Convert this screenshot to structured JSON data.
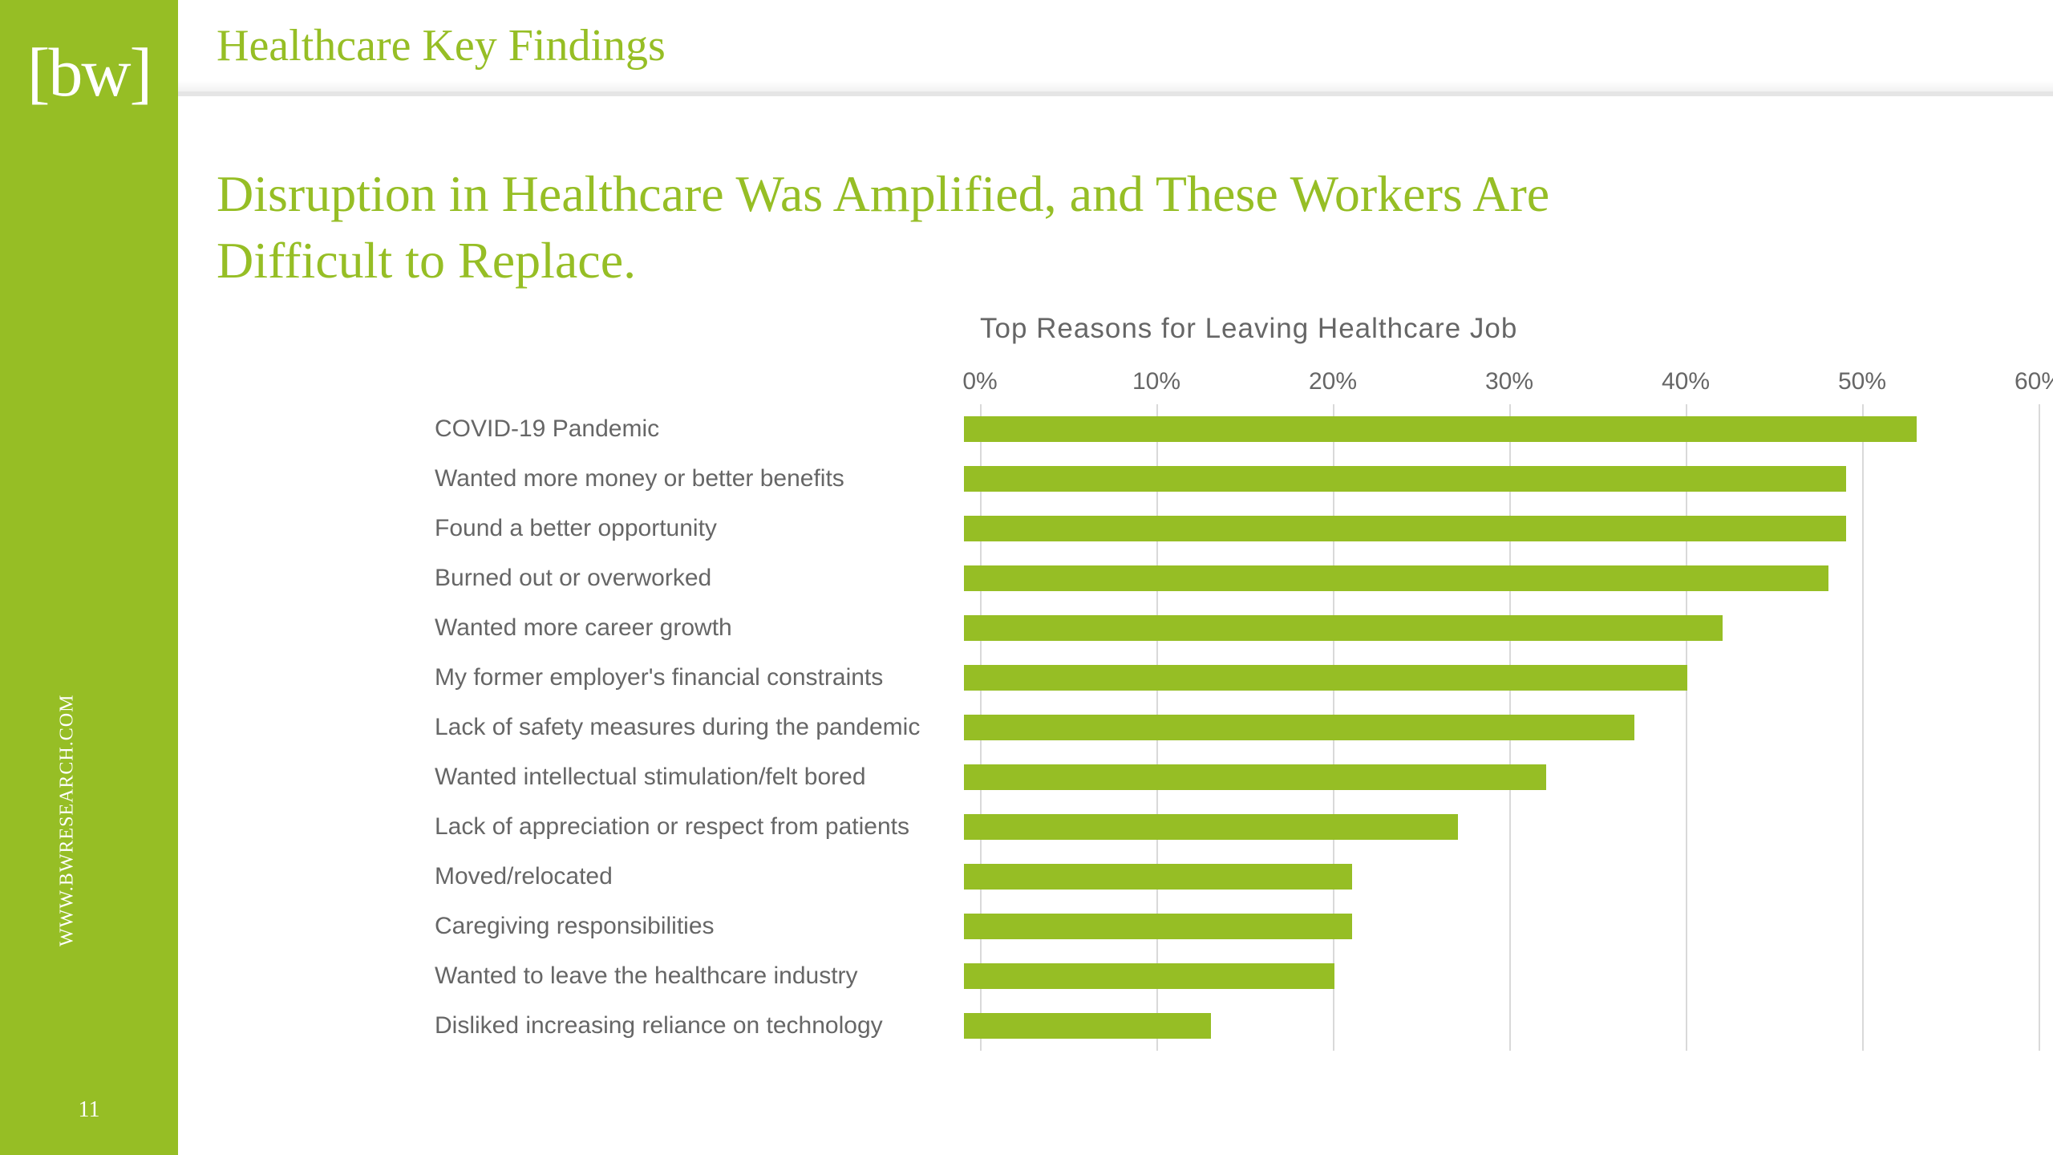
{
  "brand": {
    "logo_text": "[bw]",
    "url": "WWW.BWRESEARCH.COM",
    "page_number": "11",
    "sidebar_color": "#96be25"
  },
  "kicker": "Healthcare Key Findings",
  "headline": "Disruption in Healthcare Was Amplified, and These Workers Are Difficult to Replace.",
  "chart": {
    "type": "bar",
    "title": "Top Reasons for Leaving Healthcare Job",
    "bar_color": "#96be25",
    "grid_color": "#d9d9d9",
    "text_color": "#666666",
    "label_fontsize": 30,
    "title_fontsize": 35,
    "xmin": 0,
    "xmax": 60,
    "xtick_step": 10,
    "xtick_labels": [
      "0%",
      "10%",
      "20%",
      "30%",
      "40%",
      "50%",
      "60%"
    ],
    "rows": [
      {
        "label": "COVID-19 Pandemic",
        "value": 54
      },
      {
        "label": "Wanted more money or better benefits",
        "value": 50
      },
      {
        "label": "Found a better opportunity",
        "value": 50
      },
      {
        "label": "Burned out or overworked",
        "value": 49
      },
      {
        "label": "Wanted more career growth",
        "value": 43
      },
      {
        "label": "My former employer's financial constraints",
        "value": 41
      },
      {
        "label": "Lack of safety measures during the pandemic",
        "value": 38
      },
      {
        "label": "Wanted intellectual stimulation/felt bored",
        "value": 33
      },
      {
        "label": "Lack of appreciation or respect from patients",
        "value": 28
      },
      {
        "label": "Moved/relocated",
        "value": 22
      },
      {
        "label": "Caregiving responsibilities",
        "value": 22
      },
      {
        "label": "Wanted to leave the healthcare industry",
        "value": 21
      },
      {
        "label": "Disliked increasing reliance on technology",
        "value": 14
      }
    ]
  }
}
